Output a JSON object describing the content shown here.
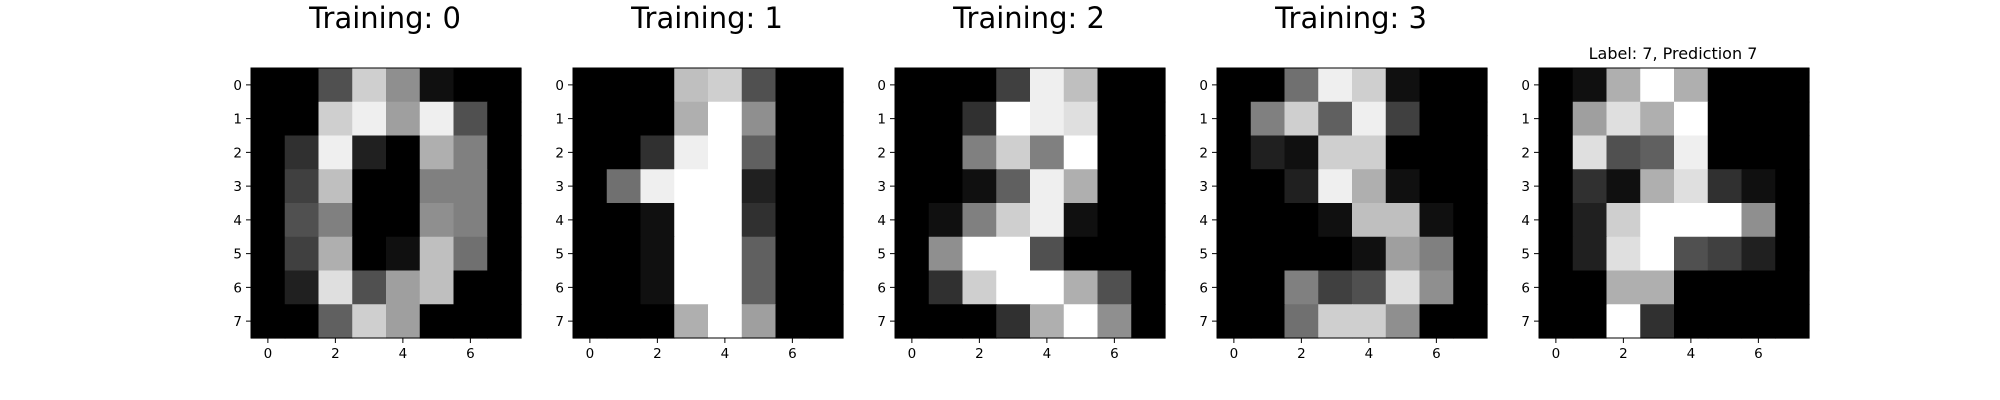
{
  "chart_data": [
    {
      "type": "heatmap",
      "title": "Training: 0",
      "colormap": "gray",
      "value_range": [
        0,
        16
      ],
      "x_ticks": [
        0,
        2,
        4,
        6
      ],
      "y_ticks": [
        0,
        1,
        2,
        3,
        4,
        5,
        6,
        7
      ],
      "values": [
        [
          0,
          0,
          5,
          13,
          9,
          1,
          0,
          0
        ],
        [
          0,
          0,
          13,
          15,
          10,
          15,
          5,
          0
        ],
        [
          0,
          3,
          15,
          2,
          0,
          11,
          8,
          0
        ],
        [
          0,
          4,
          12,
          0,
          0,
          8,
          8,
          0
        ],
        [
          0,
          5,
          8,
          0,
          0,
          9,
          8,
          0
        ],
        [
          0,
          4,
          11,
          0,
          1,
          12,
          7,
          0
        ],
        [
          0,
          2,
          14,
          5,
          10,
          12,
          0,
          0
        ],
        [
          0,
          0,
          6,
          13,
          10,
          0,
          0,
          0
        ]
      ]
    },
    {
      "type": "heatmap",
      "title": "Training: 1",
      "colormap": "gray",
      "value_range": [
        0,
        16
      ],
      "x_ticks": [
        0,
        2,
        4,
        6
      ],
      "y_ticks": [
        0,
        1,
        2,
        3,
        4,
        5,
        6,
        7
      ],
      "values": [
        [
          0,
          0,
          0,
          12,
          13,
          5,
          0,
          0
        ],
        [
          0,
          0,
          0,
          11,
          16,
          9,
          0,
          0
        ],
        [
          0,
          0,
          3,
          15,
          16,
          6,
          0,
          0
        ],
        [
          0,
          7,
          15,
          16,
          16,
          2,
          0,
          0
        ],
        [
          0,
          0,
          1,
          16,
          16,
          3,
          0,
          0
        ],
        [
          0,
          0,
          1,
          16,
          16,
          6,
          0,
          0
        ],
        [
          0,
          0,
          1,
          16,
          16,
          6,
          0,
          0
        ],
        [
          0,
          0,
          0,
          11,
          16,
          10,
          0,
          0
        ]
      ]
    },
    {
      "type": "heatmap",
      "title": "Training: 2",
      "colormap": "gray",
      "value_range": [
        0,
        16
      ],
      "x_ticks": [
        0,
        2,
        4,
        6
      ],
      "y_ticks": [
        0,
        1,
        2,
        3,
        4,
        5,
        6,
        7
      ],
      "values": [
        [
          0,
          0,
          0,
          4,
          15,
          12,
          0,
          0
        ],
        [
          0,
          0,
          3,
          16,
          15,
          14,
          0,
          0
        ],
        [
          0,
          0,
          8,
          13,
          8,
          16,
          0,
          0
        ],
        [
          0,
          0,
          1,
          6,
          15,
          11,
          0,
          0
        ],
        [
          0,
          1,
          8,
          13,
          15,
          1,
          0,
          0
        ],
        [
          0,
          9,
          16,
          16,
          5,
          0,
          0,
          0
        ],
        [
          0,
          3,
          13,
          16,
          16,
          11,
          5,
          0
        ],
        [
          0,
          0,
          0,
          3,
          11,
          16,
          9,
          0
        ]
      ]
    },
    {
      "type": "heatmap",
      "title": "Training: 3",
      "colormap": "gray",
      "value_range": [
        0,
        16
      ],
      "x_ticks": [
        0,
        2,
        4,
        6
      ],
      "y_ticks": [
        0,
        1,
        2,
        3,
        4,
        5,
        6,
        7
      ],
      "values": [
        [
          0,
          0,
          7,
          15,
          13,
          1,
          0,
          0
        ],
        [
          0,
          8,
          13,
          6,
          15,
          4,
          0,
          0
        ],
        [
          0,
          2,
          1,
          13,
          13,
          0,
          0,
          0
        ],
        [
          0,
          0,
          2,
          15,
          11,
          1,
          0,
          0
        ],
        [
          0,
          0,
          0,
          1,
          12,
          12,
          1,
          0
        ],
        [
          0,
          0,
          0,
          0,
          1,
          10,
          8,
          0
        ],
        [
          0,
          0,
          8,
          4,
          5,
          14,
          9,
          0
        ],
        [
          0,
          0,
          7,
          13,
          13,
          9,
          0,
          0
        ]
      ]
    },
    {
      "type": "heatmap",
      "title": "Label: 7, Prediction 7",
      "colormap": "gray",
      "value_range": [
        0,
        16
      ],
      "x_ticks": [
        0,
        2,
        4,
        6
      ],
      "y_ticks": [
        0,
        1,
        2,
        3,
        4,
        5,
        6,
        7
      ],
      "values": [
        [
          0,
          1,
          11,
          16,
          11,
          0,
          0,
          0
        ],
        [
          0,
          10,
          14,
          11,
          16,
          0,
          0,
          0
        ],
        [
          0,
          14,
          5,
          6,
          15,
          0,
          0,
          0
        ],
        [
          0,
          3,
          1,
          11,
          14,
          3,
          1,
          0
        ],
        [
          0,
          2,
          13,
          16,
          16,
          16,
          9,
          0
        ],
        [
          0,
          2,
          14,
          16,
          5,
          4,
          2,
          0
        ],
        [
          0,
          0,
          11,
          11,
          0,
          0,
          0,
          0
        ],
        [
          0,
          0,
          16,
          3,
          0,
          0,
          0,
          0
        ]
      ]
    }
  ]
}
